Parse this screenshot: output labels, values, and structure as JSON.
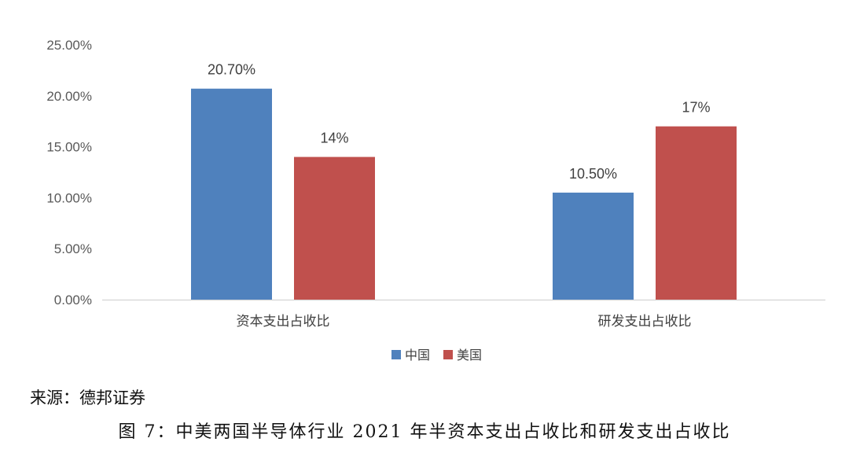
{
  "chart_data": {
    "type": "bar",
    "categories": [
      "资本支出占收比",
      "研发支出占收比"
    ],
    "series": [
      {
        "name": "中国",
        "color": "#4f81bd",
        "values": [
          20.7,
          10.5
        ],
        "labels": [
          "20.70%",
          "10.50%"
        ]
      },
      {
        "name": "美国",
        "color": "#c0504d",
        "values": [
          14,
          17
        ],
        "labels": [
          "14%",
          "17%"
        ]
      }
    ],
    "ylim": [
      0,
      25
    ],
    "yticks": [
      0,
      5,
      10,
      15,
      20,
      25
    ],
    "ytick_labels": [
      "0.00%",
      "5.00%",
      "10.00%",
      "15.00%",
      "20.00%",
      "25.00%"
    ],
    "legend_position": "bottom",
    "grid": false
  },
  "source_note": "来源：德邦证券",
  "caption": "图 7：中美两国半导体行业 2021 年半资本支出占收比和研发支出占收比"
}
